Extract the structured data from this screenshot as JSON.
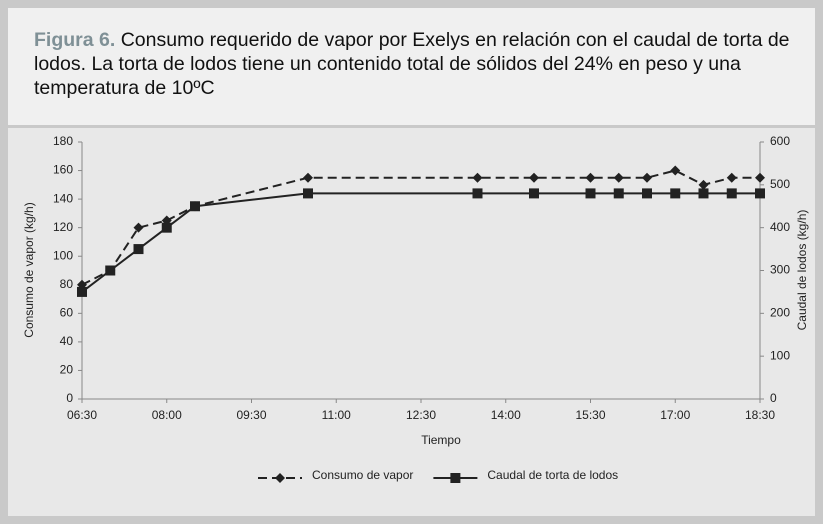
{
  "figure_label": "Figura 6.",
  "caption": "Consumo requerido de vapor por Exelys en relación con el caudal de torta de lodos. La torta de lodos tiene un contenido total de sólidos del 24% en peso y una temperatura de 10ºC",
  "chart_data": {
    "type": "line",
    "x": [
      6.5,
      7.0,
      7.5,
      8.0,
      8.5,
      10.5,
      13.5,
      14.5,
      15.5,
      16.0,
      16.5,
      17.0,
      17.5,
      18.0,
      18.5
    ],
    "series": [
      {
        "name": "Consumo de vapor",
        "color": "#222222",
        "line_style": "dashed",
        "marker": "diamond",
        "values": [
          80,
          90,
          120,
          125,
          135,
          155,
          155,
          155,
          155,
          155,
          155,
          160,
          150,
          155,
          155
        ]
      },
      {
        "name": "Caudal de torta de lodos",
        "color": "#222222",
        "line_style": "solid",
        "marker": "square",
        "axis": "y2",
        "values": [
          250,
          300,
          350,
          400,
          450,
          480,
          480,
          480,
          480,
          480,
          480,
          480,
          480,
          480,
          480
        ]
      }
    ],
    "xlabel": "Tiempo",
    "ylabel": "Consumo de vapor (kg/h)",
    "y2label": "Caudal de lodos (kg/h)",
    "xlim": [
      6.5,
      18.5
    ],
    "xticks": [
      {
        "value": 6.5,
        "label": "06:30"
      },
      {
        "value": 8.0,
        "label": "08:00"
      },
      {
        "value": 9.5,
        "label": "09:30"
      },
      {
        "value": 11.0,
        "label": "11:00"
      },
      {
        "value": 12.5,
        "label": "12:30"
      },
      {
        "value": 14.0,
        "label": "14:00"
      },
      {
        "value": 15.5,
        "label": "15:30"
      },
      {
        "value": 17.0,
        "label": "17:00"
      },
      {
        "value": 18.5,
        "label": "18:30"
      }
    ],
    "ylim": [
      0,
      180
    ],
    "yticks": [
      0,
      20,
      40,
      60,
      80,
      100,
      120,
      140,
      160,
      180
    ],
    "y2lim": [
      0,
      600
    ],
    "y2ticks": [
      0,
      100,
      200,
      300,
      400,
      500,
      600
    ],
    "legend": "bottom"
  }
}
